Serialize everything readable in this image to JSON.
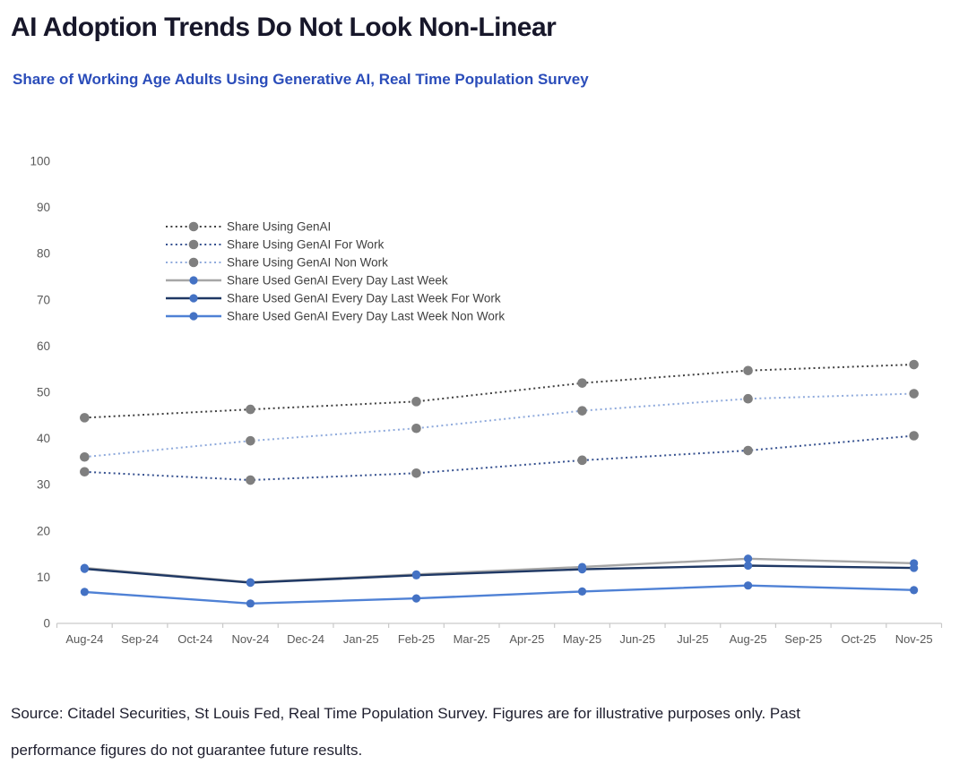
{
  "page": {
    "title": "AI Adoption Trends Do Not Look Non-Linear",
    "subtitle": "Share of Working Age Adults Using Generative AI, Real Time Population Survey",
    "source_line1": "Source: Citadel Securities, St Louis Fed, Real Time Population Survey. Figures are for illustrative purposes only. Past",
    "source_line2": "performance figures do not guarantee future results."
  },
  "colors": {
    "title_text": "#17172a",
    "subtitle_text": "#2b4dba",
    "axis_line": "#c9c9c9",
    "axis_text": "#595959",
    "legend_text": "#404040",
    "source_text": "#1e1e2e",
    "gray_marker": "#7f7f7f",
    "blue_marker": "#4472c4"
  },
  "chart_data": {
    "type": "line",
    "title": "",
    "xlabel": "",
    "ylabel": "",
    "ylim": [
      0,
      100
    ],
    "y_ticks": [
      0,
      10,
      20,
      30,
      40,
      50,
      60,
      70,
      80,
      90,
      100
    ],
    "grid": false,
    "legend_position": "inside-top-left",
    "x_axis_labels": [
      "Aug-24",
      "Sep-24",
      "Oct-24",
      "Nov-24",
      "Dec-24",
      "Jan-25",
      "Feb-25",
      "Mar-25",
      "Apr-25",
      "May-25",
      "Jun-25",
      "Jul-25",
      "Aug-25",
      "Sep-25",
      "Oct-25",
      "Nov-25"
    ],
    "data_months": [
      "Aug-24",
      "Nov-24",
      "Feb-25",
      "May-25",
      "Aug-25",
      "Nov-25"
    ],
    "data_month_indices": [
      0,
      3,
      6,
      9,
      12,
      15
    ],
    "series": [
      {
        "name": "Share Using GenAI",
        "style": "dotted",
        "line_color": "#3f3f3f",
        "marker_color": "#7f7f7f",
        "values": [
          44.5,
          46.3,
          48.0,
          52.0,
          54.7,
          56.0
        ]
      },
      {
        "name": "Share Using GenAI For Work",
        "style": "dotted",
        "line_color": "#35508f",
        "marker_color": "#7f7f7f",
        "values": [
          32.8,
          31.0,
          32.5,
          35.3,
          37.4,
          40.6
        ]
      },
      {
        "name": "Share Using GenAI Non Work",
        "style": "dotted",
        "line_color": "#8faadc",
        "marker_color": "#7f7f7f",
        "values": [
          36.0,
          39.5,
          42.2,
          46.0,
          48.6,
          49.7
        ]
      },
      {
        "name": "Share Used GenAI Every Day Last Week",
        "style": "solid",
        "line_color": "#a6a6a6",
        "marker_color": "#4472c4",
        "values": [
          12.0,
          8.9,
          10.6,
          12.2,
          14.0,
          13.0
        ]
      },
      {
        "name": "Share Used GenAI Every Day Last Week For Work",
        "style": "solid",
        "line_color": "#1f3864",
        "marker_color": "#4472c4",
        "values": [
          11.8,
          8.8,
          10.4,
          11.7,
          12.5,
          12.0
        ]
      },
      {
        "name": "Share Used GenAI Every Day Last Week Non Work",
        "style": "solid",
        "line_color": "#4f81d5",
        "marker_color": "#4472c4",
        "values": [
          6.8,
          4.3,
          5.4,
          6.9,
          8.2,
          7.2
        ]
      }
    ]
  }
}
